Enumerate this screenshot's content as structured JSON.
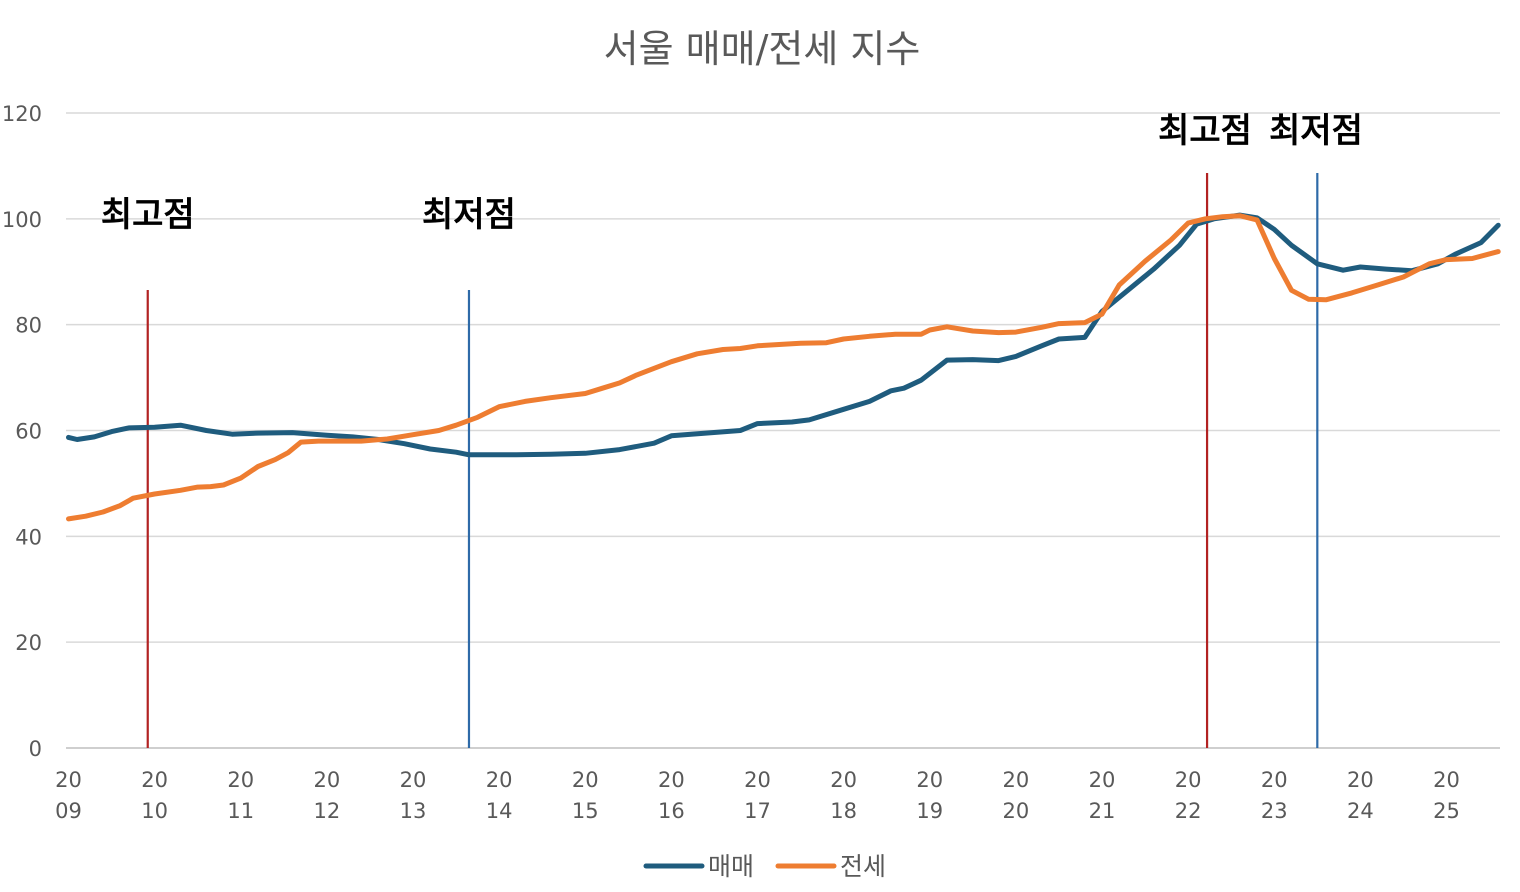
{
  "chart_data": {
    "type": "line",
    "title": "서울 매매/전세 지수",
    "ylim": [
      0,
      120
    ],
    "yticks": [
      0,
      20,
      40,
      60,
      80,
      100,
      120
    ],
    "xlim": [
      2009,
      2025.65
    ],
    "xticks": [
      {
        "year": 2009,
        "top": "20",
        "bottom": "09"
      },
      {
        "year": 2010,
        "top": "20",
        "bottom": "10"
      },
      {
        "year": 2011,
        "top": "20",
        "bottom": "11"
      },
      {
        "year": 2012,
        "top": "20",
        "bottom": "12"
      },
      {
        "year": 2013,
        "top": "20",
        "bottom": "13"
      },
      {
        "year": 2014,
        "top": "20",
        "bottom": "14"
      },
      {
        "year": 2015,
        "top": "20",
        "bottom": "15"
      },
      {
        "year": 2016,
        "top": "20",
        "bottom": "16"
      },
      {
        "year": 2017,
        "top": "20",
        "bottom": "17"
      },
      {
        "year": 2018,
        "top": "20",
        "bottom": "18"
      },
      {
        "year": 2019,
        "top": "20",
        "bottom": "19"
      },
      {
        "year": 2020,
        "top": "20",
        "bottom": "20"
      },
      {
        "year": 2021,
        "top": "20",
        "bottom": "21"
      },
      {
        "year": 2022,
        "top": "20",
        "bottom": "22"
      },
      {
        "year": 2023,
        "top": "20",
        "bottom": "23"
      },
      {
        "year": 2024,
        "top": "20",
        "bottom": "24"
      },
      {
        "year": 2025,
        "top": "20",
        "bottom": "25"
      }
    ],
    "grid": true,
    "legend_position": "bottom",
    "series": [
      {
        "name": "매매",
        "color": "#1f5c7e",
        "x": [
          2009.0,
          2009.1,
          2009.3,
          2009.5,
          2009.7,
          2010.0,
          2010.3,
          2010.6,
          2010.9,
          2011.2,
          2011.6,
          2012.0,
          2012.3,
          2012.6,
          2012.9,
          2013.2,
          2013.5,
          2013.65,
          2013.8,
          2014.2,
          2014.6,
          2015.0,
          2015.4,
          2015.8,
          2016.0,
          2016.4,
          2016.8,
          2017.0,
          2017.4,
          2017.6,
          2018.0,
          2018.3,
          2018.55,
          2018.7,
          2018.9,
          2019.2,
          2019.5,
          2019.8,
          2020.0,
          2020.3,
          2020.5,
          2020.8,
          2021.0,
          2021.3,
          2021.6,
          2021.9,
          2022.1,
          2022.3,
          2022.6,
          2022.8,
          2023.0,
          2023.2,
          2023.5,
          2023.8,
          2024.0,
          2024.3,
          2024.6,
          2024.9,
          2025.1,
          2025.4,
          2025.6
        ],
        "values": [
          58.7,
          58.3,
          58.8,
          59.8,
          60.5,
          60.6,
          61.0,
          60.0,
          59.3,
          59.5,
          59.6,
          59.1,
          58.8,
          58.3,
          57.5,
          56.5,
          55.9,
          55.4,
          55.4,
          55.4,
          55.5,
          55.7,
          56.4,
          57.6,
          59.0,
          59.5,
          60.0,
          61.3,
          61.6,
          62.0,
          64.0,
          65.5,
          67.5,
          68.0,
          69.5,
          73.3,
          73.4,
          73.2,
          74.0,
          76.0,
          77.3,
          77.6,
          82.5,
          86.5,
          90.5,
          95.0,
          99.0,
          100.0,
          100.7,
          100.2,
          98.0,
          95.0,
          91.5,
          90.3,
          90.9,
          90.5,
          90.2,
          91.5,
          93.3,
          95.5,
          98.8
        ]
      },
      {
        "name": "전세",
        "color": "#ee7d31",
        "x": [
          2009.0,
          2009.2,
          2009.4,
          2009.6,
          2009.75,
          2010.0,
          2010.3,
          2010.5,
          2010.65,
          2010.8,
          2011.0,
          2011.2,
          2011.4,
          2011.55,
          2011.7,
          2011.9,
          2012.1,
          2012.4,
          2012.7,
          2013.0,
          2013.3,
          2013.5,
          2013.75,
          2014.0,
          2014.3,
          2014.6,
          2015.0,
          2015.2,
          2015.4,
          2015.6,
          2016.0,
          2016.3,
          2016.6,
          2016.8,
          2017.0,
          2017.3,
          2017.5,
          2017.8,
          2018.0,
          2018.3,
          2018.6,
          2018.9,
          2019.0,
          2019.2,
          2019.5,
          2019.8,
          2020.0,
          2020.3,
          2020.5,
          2020.8,
          2021.0,
          2021.2,
          2021.5,
          2021.8,
          2022.0,
          2022.2,
          2022.4,
          2022.6,
          2022.8,
          2023.0,
          2023.2,
          2023.4,
          2023.6,
          2023.9,
          2024.2,
          2024.5,
          2024.8,
          2025.0,
          2025.3,
          2025.6
        ],
        "values": [
          43.3,
          43.8,
          44.6,
          45.8,
          47.2,
          48.0,
          48.7,
          49.3,
          49.4,
          49.7,
          51.0,
          53.2,
          54.5,
          55.8,
          57.8,
          58.0,
          58.0,
          58.0,
          58.4,
          59.2,
          60.0,
          61.0,
          62.5,
          64.5,
          65.5,
          66.2,
          67.0,
          68.0,
          69.0,
          70.5,
          73.0,
          74.5,
          75.3,
          75.5,
          76.0,
          76.3,
          76.5,
          76.6,
          77.3,
          77.8,
          78.2,
          78.2,
          79.0,
          79.6,
          78.8,
          78.5,
          78.6,
          79.5,
          80.2,
          80.4,
          82.0,
          87.5,
          92.0,
          96.0,
          99.2,
          100.0,
          100.4,
          100.6,
          99.8,
          92.5,
          86.5,
          84.8,
          84.7,
          86.0,
          87.5,
          89.0,
          91.5,
          92.3,
          92.5,
          93.8
        ]
      }
    ],
    "annotations": [
      {
        "label": "최고점",
        "x": 2009.92,
        "color": "#b22222",
        "label_row": "low"
      },
      {
        "label": "최저점",
        "x": 2013.65,
        "color": "#2e6aa8",
        "label_row": "low"
      },
      {
        "label": "최고점",
        "x": 2022.22,
        "color": "#b22222",
        "label_row": "high"
      },
      {
        "label": "최저점",
        "x": 2023.5,
        "color": "#2e6aa8",
        "label_row": "high"
      }
    ]
  }
}
